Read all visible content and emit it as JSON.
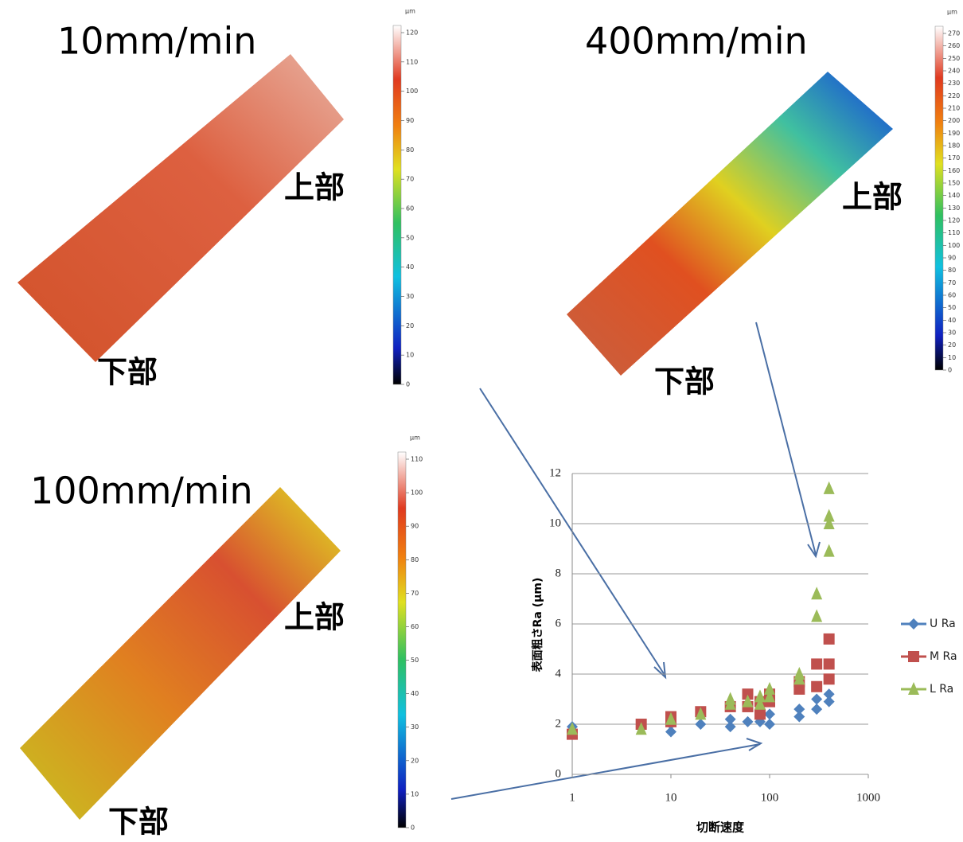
{
  "panels": [
    {
      "title": "10mm/min",
      "top_label": "上部",
      "bottom_label": "下部",
      "colorbar": {
        "unit": "µm",
        "ticks": [
          0,
          10,
          20,
          30,
          40,
          50,
          60,
          70,
          80,
          90,
          100,
          110,
          120
        ]
      }
    },
    {
      "title": "400mm/min",
      "top_label": "上部",
      "bottom_label": "下部",
      "colorbar": {
        "unit": "µm",
        "ticks": [
          0,
          10,
          20,
          30,
          40,
          50,
          60,
          70,
          80,
          90,
          100,
          110,
          120,
          130,
          140,
          150,
          160,
          170,
          180,
          190,
          200,
          210,
          220,
          230,
          240,
          250,
          260,
          270
        ]
      }
    },
    {
      "title": "100mm/min",
      "top_label": "上部",
      "bottom_label": "下部",
      "colorbar": {
        "unit": "µm",
        "ticks": [
          0,
          10,
          20,
          30,
          40,
          50,
          60,
          70,
          80,
          90,
          100,
          110
        ]
      }
    }
  ],
  "chart_data": {
    "type": "scatter",
    "x_label": "切断速度",
    "y_label": "表面粗さRa (µm)",
    "log_x": true,
    "xlim": [
      1,
      1000
    ],
    "xticks": [
      1,
      10,
      100,
      1000
    ],
    "ylim": [
      0,
      12
    ],
    "yticks": [
      0,
      2,
      4,
      6,
      8,
      10,
      12
    ],
    "grid": true,
    "series": [
      {
        "name": "U Ra",
        "color": "#4f81bd",
        "marker": "diamond",
        "x": [
          1,
          5,
          10,
          10,
          20,
          40,
          40,
          60,
          80,
          80,
          100,
          100,
          200,
          200,
          300,
          300,
          400,
          400
        ],
        "values": [
          1.9,
          1.9,
          1.7,
          2.0,
          2.0,
          1.9,
          2.2,
          2.1,
          2.1,
          2.3,
          2.0,
          2.4,
          2.3,
          2.6,
          2.6,
          3.0,
          2.9,
          3.2
        ]
      },
      {
        "name": "M Ra",
        "color": "#c0504d",
        "marker": "square",
        "x": [
          1,
          5,
          10,
          10,
          20,
          40,
          60,
          60,
          80,
          80,
          100,
          100,
          200,
          200,
          300,
          300,
          400,
          400,
          400
        ],
        "values": [
          1.6,
          2.0,
          2.1,
          2.3,
          2.5,
          2.7,
          2.7,
          3.2,
          2.4,
          2.9,
          2.9,
          3.2,
          3.4,
          3.7,
          3.5,
          4.4,
          3.8,
          4.4,
          5.4
        ]
      },
      {
        "name": "L Ra",
        "color": "#9bbb59",
        "marker": "triangle",
        "x": [
          1,
          5,
          10,
          20,
          40,
          40,
          60,
          80,
          80,
          100,
          100,
          200,
          200,
          300,
          300,
          400,
          400,
          400,
          400
        ],
        "values": [
          1.8,
          1.8,
          2.2,
          2.4,
          2.8,
          3.0,
          2.9,
          2.8,
          3.1,
          3.1,
          3.4,
          3.8,
          4.0,
          6.3,
          7.2,
          8.9,
          10.0,
          10.3,
          11.4
        ]
      }
    ]
  }
}
